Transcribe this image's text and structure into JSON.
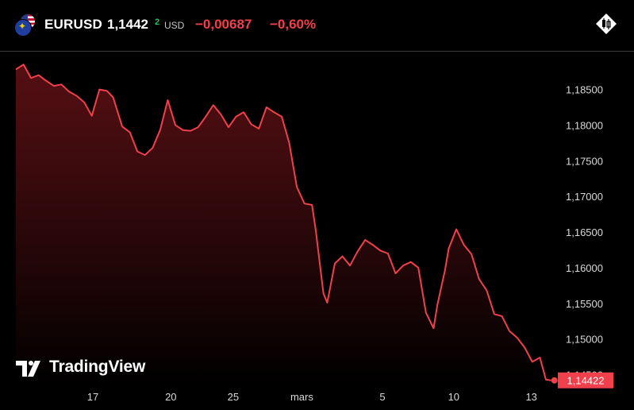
{
  "header": {
    "symbol": "EURUSD",
    "price": "1,1442",
    "price_superscript": "2",
    "currency": "USD",
    "change": "−0,00687",
    "change_percent": "−0,60%"
  },
  "logo": {
    "text": "TradingView"
  },
  "icons": {
    "flags": "eu-us-flags-icon",
    "candle": "candlestick-icon",
    "logo": "tradingview-logo-icon"
  },
  "colors": {
    "line": "#f0404b",
    "badge": "#f0404b",
    "positive": "#22c55e",
    "background": "#000000"
  },
  "chart_data": {
    "type": "area",
    "title": "",
    "xlabel": "",
    "ylabel": "",
    "x_ticks": [
      {
        "label": "17",
        "x": 0.1014
      },
      {
        "label": "20",
        "x": 0.2041
      },
      {
        "label": "25",
        "x": 0.2862
      },
      {
        "label": "mars",
        "x": 0.3766
      },
      {
        "label": "5",
        "x": 0.4827
      },
      {
        "label": "10",
        "x": 0.5766
      },
      {
        "label": "13",
        "x": 0.6789
      }
    ],
    "y_ticks": [
      "1,18500",
      "1,18000",
      "1,17500",
      "1,17000",
      "1,16500",
      "1,16000",
      "1,15500",
      "1,15000",
      "1,14500"
    ],
    "ylim": [
      1.1435,
      1.1903
    ],
    "xlim": [
      0,
      1
    ],
    "last_value_label": "1,14422",
    "series": [
      {
        "x": [
          0.0,
          0.01,
          0.02,
          0.03,
          0.04,
          0.05,
          0.06,
          0.07,
          0.08,
          0.09,
          0.1,
          0.11,
          0.12,
          0.128,
          0.14,
          0.15,
          0.16,
          0.17,
          0.18,
          0.19,
          0.2,
          0.21,
          0.22,
          0.23,
          0.24,
          0.25,
          0.26,
          0.27,
          0.28,
          0.29,
          0.3,
          0.31,
          0.32,
          0.33,
          0.34,
          0.35,
          0.36,
          0.37,
          0.38,
          0.39,
          0.395,
          0.405,
          0.41,
          0.42,
          0.43,
          0.44,
          0.45,
          0.46,
          0.47,
          0.48,
          0.49,
          0.5,
          0.51,
          0.52,
          0.53,
          0.54,
          0.55,
          0.555,
          0.565,
          0.57,
          0.58,
          0.59,
          0.6,
          0.61,
          0.62,
          0.63,
          0.64,
          0.65,
          0.66,
          0.67,
          0.68,
          0.69,
          0.698,
          0.705
        ],
        "y": [
          1.1878,
          1.1885,
          1.1866,
          1.187,
          1.1862,
          1.1855,
          1.1857,
          1.1847,
          1.1841,
          1.1832,
          1.1813,
          1.185,
          1.1848,
          1.1839,
          1.1798,
          1.179,
          1.1763,
          1.1758,
          1.1768,
          1.1793,
          1.1835,
          1.18,
          1.1793,
          1.1792,
          1.1797,
          1.1812,
          1.1828,
          1.1815,
          1.1797,
          1.1812,
          1.1818,
          1.1801,
          1.1795,
          1.1825,
          1.1818,
          1.1812,
          1.1775,
          1.1713,
          1.169,
          1.1688,
          1.1652,
          1.1564,
          1.1551,
          1.1606,
          1.1616,
          1.1603,
          1.1623,
          1.1639,
          1.1632,
          1.1624,
          1.162,
          1.1592,
          1.1603,
          1.1608,
          1.16,
          1.1537,
          1.1515,
          1.1548,
          1.1596,
          1.1627,
          1.1654,
          1.1632,
          1.1619,
          1.1584,
          1.1568,
          1.1535,
          1.1532,
          1.1511,
          1.1502,
          1.1488,
          1.1468,
          1.1474,
          1.1443,
          1.1442
        ]
      }
    ],
    "grid": false,
    "legend": "none"
  }
}
